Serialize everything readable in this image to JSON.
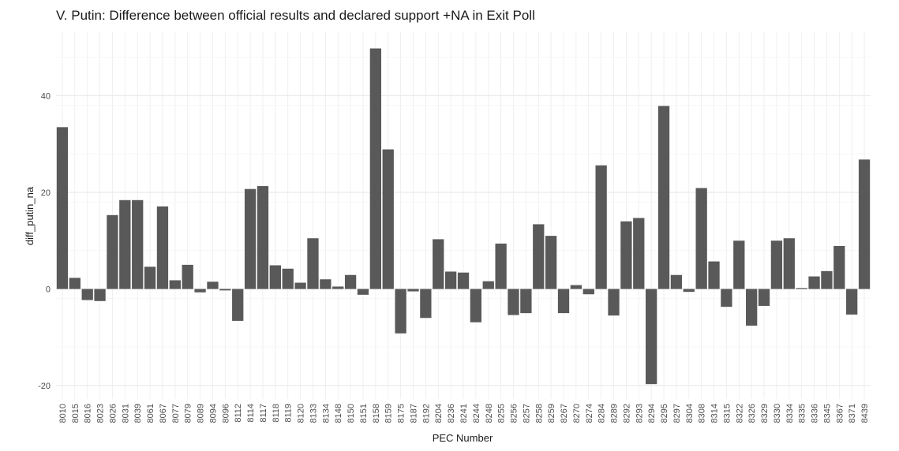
{
  "chart_data": {
    "type": "bar",
    "title": "V. Putin: Difference between official results and declared support +NA in Exit Poll",
    "xlabel": "PEC Number",
    "ylabel": "diff_putin_na",
    "ylim": [
      -22,
      53
    ],
    "yticks": [
      -20,
      0,
      20,
      40
    ],
    "grid": true,
    "bar_color": "#595959",
    "categories": [
      "8010",
      "8015",
      "8016",
      "8023",
      "8026",
      "8031",
      "8039",
      "8061",
      "8067",
      "8077",
      "8079",
      "8089",
      "8094",
      "8096",
      "8112",
      "8114",
      "8117",
      "8118",
      "8119",
      "8120",
      "8133",
      "8134",
      "8148",
      "8150",
      "8151",
      "8158",
      "8159",
      "8175",
      "8187",
      "8192",
      "8204",
      "8236",
      "8241",
      "8244",
      "8248",
      "8255",
      "8256",
      "8257",
      "8258",
      "8259",
      "8267",
      "8270",
      "8274",
      "8284",
      "8289",
      "8292",
      "8293",
      "8294",
      "8295",
      "8297",
      "8304",
      "8308",
      "8314",
      "8315",
      "8322",
      "8326",
      "8329",
      "8330",
      "8334",
      "8335",
      "8336",
      "8345",
      "8367",
      "8371",
      "8439"
    ],
    "values": [
      33.5,
      2.3,
      -2.3,
      -2.5,
      15.3,
      18.4,
      18.4,
      4.6,
      17.1,
      1.8,
      5.0,
      -0.7,
      1.5,
      -0.3,
      -6.6,
      20.7,
      21.3,
      4.9,
      4.2,
      1.3,
      10.5,
      2.0,
      0.5,
      2.9,
      -1.2,
      49.8,
      28.9,
      -9.2,
      -0.5,
      -6.0,
      10.3,
      3.6,
      3.4,
      -6.9,
      1.6,
      9.4,
      -5.4,
      -5.0,
      13.4,
      11.0,
      -5.0,
      0.8,
      -1.1,
      25.6,
      -5.5,
      14.0,
      14.7,
      -19.7,
      37.9,
      2.9,
      -0.6,
      20.9,
      5.7,
      -3.7,
      10.0,
      -7.6,
      -3.5,
      10.0,
      10.5,
      0.2,
      2.6,
      3.7,
      8.9,
      -5.3,
      26.8
    ]
  }
}
